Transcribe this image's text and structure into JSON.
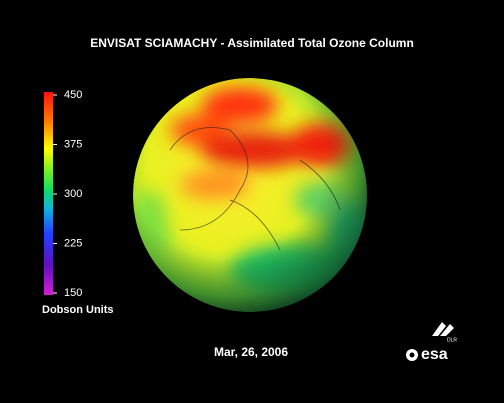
{
  "title": "ENVISAT SCIAMACHY - Assimilated Total Ozone Column",
  "colorbar": {
    "label": "Dobson Units",
    "lim": [
      150,
      450
    ],
    "ticks": [
      450,
      375,
      300,
      225,
      150
    ]
  },
  "date": "Mar,  26,  2006",
  "logos": {
    "dlr": "DLR",
    "esa": "esa"
  }
}
